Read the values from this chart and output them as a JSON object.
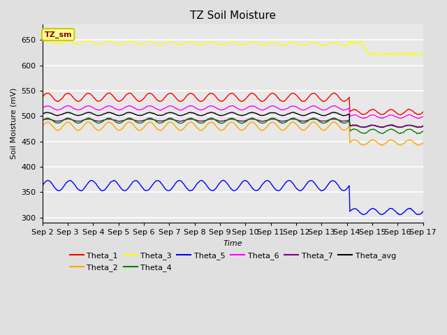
{
  "title": "TZ Soil Moisture",
  "xlabel": "Time",
  "ylabel": "Soil Moisture (mV)",
  "ylim": [
    290,
    680
  ],
  "yticks": [
    300,
    350,
    400,
    450,
    500,
    550,
    600,
    650
  ],
  "bg_color": "#e0e0e0",
  "plot_bg_color": "#e8e8e8",
  "annotation_text": "TZ_sm",
  "annotation_bg": "#ffff99",
  "annotation_border": "#cccc00",
  "n_points_before": 500,
  "n_points_after": 120,
  "drop_index": 500,
  "theta1_base": 537,
  "theta1_amp": 8,
  "theta1_period": 15,
  "theta1_after": 508,
  "theta1_after_amp": 5,
  "theta2_base": 480,
  "theta2_amp": 8,
  "theta2_period": 15,
  "theta2_after": 448,
  "theta2_after_amp": 5,
  "theta3_base": 645,
  "theta3_amp": 3,
  "theta3_period": 15,
  "theta3_after": 622,
  "theta3_after_amp": 2,
  "theta4_base": 491,
  "theta4_amp": 5,
  "theta4_period": 15,
  "theta4_after": 470,
  "theta4_after_amp": 4,
  "theta5_base": 363,
  "theta5_amp": 10,
  "theta5_period": 10,
  "theta5_after": 312,
  "theta5_after_amp": 6,
  "theta6_base": 516,
  "theta6_amp": 4,
  "theta6_period": 15,
  "theta6_after": 499,
  "theta6_after_amp": 3,
  "theta7_base": 492,
  "theta7_amp": 2,
  "theta7_period": 15,
  "theta7_after": 480,
  "theta7_after_amp": 2,
  "thetaavg_base": 504,
  "thetaavg_amp": 3,
  "thetaavg_period": 15,
  "thetaavg_after": 480,
  "thetaavg_after_amp": 2,
  "xticklabels": [
    "Sep 2",
    "Sep 3",
    "Sep 4",
    "Sep 5",
    "Sep 6",
    "Sep 7",
    "Sep 8",
    "Sep 9",
    "Sep 10",
    "Sep 11",
    "Sep 12",
    "Sep 13",
    "Sep 14",
    "Sep 15",
    "Sep 16",
    "Sep 17"
  ],
  "grid_color": "white",
  "linewidth": 1.0,
  "n_cycles_before": 15,
  "n_cycles_blue_before": 14
}
